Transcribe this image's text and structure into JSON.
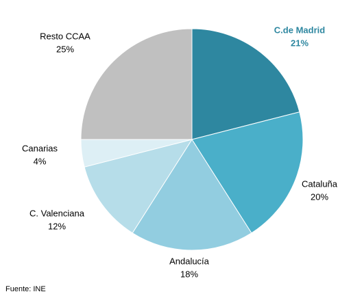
{
  "chart_data": {
    "type": "pie",
    "categories": [
      "C.de Madrid",
      "Cataluña",
      "Andalucía",
      "C. Valenciana",
      "Canarias",
      "Resto CCAA"
    ],
    "values": [
      21,
      20,
      18,
      12,
      4,
      25
    ],
    "value_labels": [
      "21%",
      "20%",
      "18%",
      "12%",
      "4%",
      "25%"
    ],
    "colors": [
      "#2e87a0",
      "#4aafc9",
      "#92cde0",
      "#b6dde9",
      "#ddeff5",
      "#c0c0c0"
    ],
    "source": "Fuente: INE"
  }
}
